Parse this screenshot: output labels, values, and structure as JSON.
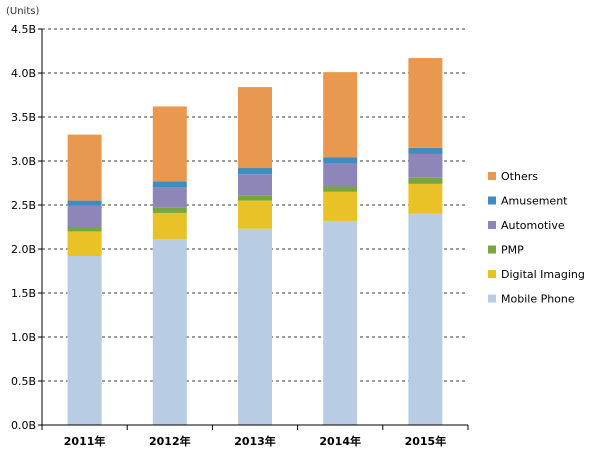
{
  "chart_data": {
    "type": "bar",
    "stacked": true,
    "unit_label": "(Units)",
    "categories": [
      "2011年",
      "2012年",
      "2013年",
      "2014年",
      "2015年"
    ],
    "yticks": [
      "0.0B",
      "0.5B",
      "1.0B",
      "1.5B",
      "2.0B",
      "2.5B",
      "3.0B",
      "3.5B",
      "4.0B",
      "4.5B"
    ],
    "ylim": [
      0,
      4.5
    ],
    "grid": "horizontal dashed",
    "legend_position": "right",
    "series": [
      {
        "name": "Mobile Phone",
        "color": "#b8cce4",
        "values": [
          1.92,
          2.11,
          2.23,
          2.32,
          2.4
        ]
      },
      {
        "name": "Digital Imaging",
        "color": "#e8c226",
        "values": [
          0.28,
          0.3,
          0.32,
          0.33,
          0.34
        ]
      },
      {
        "name": "PMP",
        "color": "#77a53f",
        "values": [
          0.05,
          0.06,
          0.06,
          0.06,
          0.07
        ]
      },
      {
        "name": "Automotive",
        "color": "#8e86b8",
        "values": [
          0.24,
          0.23,
          0.24,
          0.26,
          0.27
        ]
      },
      {
        "name": "Amusement",
        "color": "#3e8dbe",
        "values": [
          0.06,
          0.07,
          0.07,
          0.07,
          0.07
        ]
      },
      {
        "name": "Others",
        "color": "#e8994f",
        "values": [
          0.75,
          0.85,
          0.92,
          0.97,
          1.02
        ]
      }
    ]
  }
}
